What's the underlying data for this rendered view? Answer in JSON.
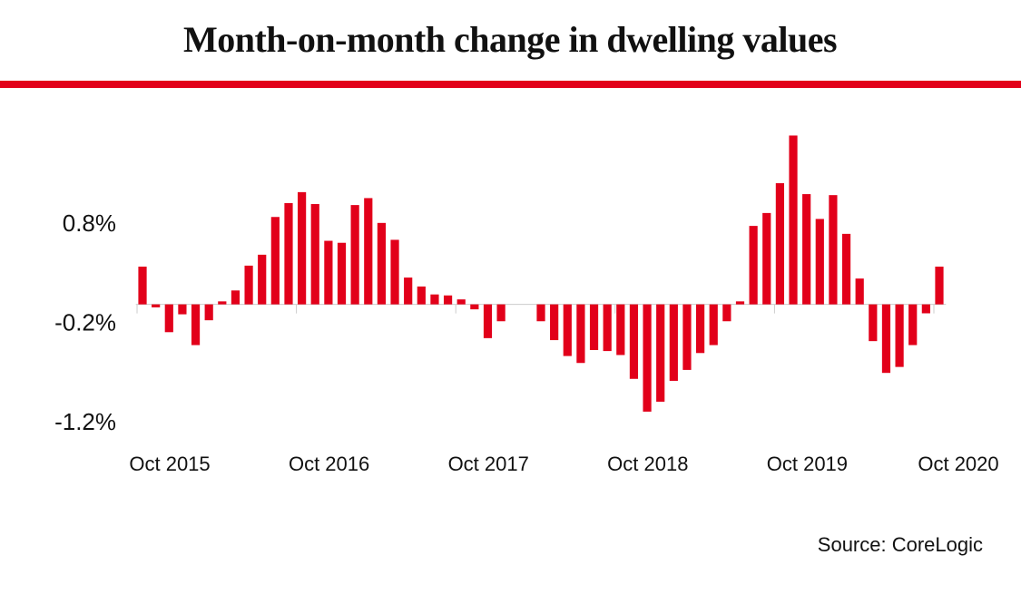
{
  "chart_data": {
    "type": "bar",
    "title": "Month-on-month change in dwelling values",
    "source": "Source: CoreLogic",
    "categories": [
      "Oct 2015",
      null,
      null,
      null,
      null,
      null,
      null,
      null,
      null,
      null,
      null,
      null,
      "Oct 2016",
      null,
      null,
      null,
      null,
      null,
      null,
      null,
      null,
      null,
      null,
      null,
      "Oct 2017",
      null,
      null,
      null,
      null,
      null,
      null,
      null,
      null,
      null,
      null,
      null,
      "Oct 2018",
      null,
      null,
      null,
      null,
      null,
      null,
      null,
      null,
      null,
      null,
      null,
      "Oct 2019",
      null,
      null,
      null,
      null,
      null,
      null,
      null,
      null,
      null,
      null,
      null,
      "Oct 2020"
    ],
    "values": [
      0.38,
      -0.03,
      -0.28,
      -0.1,
      -0.41,
      -0.16,
      0.03,
      0.14,
      0.39,
      0.5,
      0.88,
      1.02,
      1.13,
      1.01,
      0.64,
      0.62,
      1.0,
      1.07,
      0.82,
      0.65,
      0.27,
      0.18,
      0.1,
      0.09,
      0.05,
      -0.05,
      -0.34,
      -0.17,
      0,
      0,
      -0.17,
      -0.36,
      -0.52,
      -0.59,
      -0.46,
      -0.47,
      -0.51,
      -0.75,
      -1.08,
      -0.98,
      -0.77,
      -0.66,
      -0.49,
      -0.41,
      -0.17,
      0.03,
      0.79,
      0.92,
      1.22,
      1.7,
      1.11,
      0.86,
      1.1,
      0.71,
      0.26,
      -0.37,
      -0.69,
      -0.63,
      -0.41,
      -0.09,
      0.38
    ],
    "color": "#e2001a",
    "ylim": [
      -1.3,
      1.8
    ],
    "yticks": [
      {
        "value": 0.8,
        "label": "0.8%"
      },
      {
        "value": -0.2,
        "label": "-0.2%"
      },
      {
        "value": -1.2,
        "label": "-1.2%"
      }
    ],
    "grid": false
  }
}
